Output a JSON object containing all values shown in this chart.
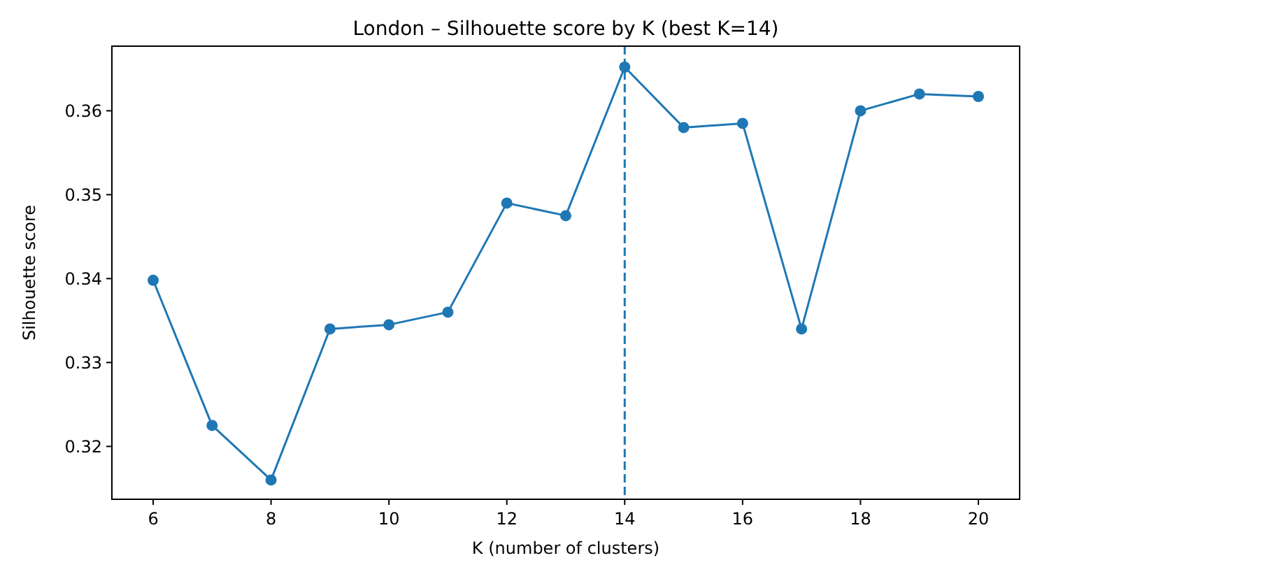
{
  "chart_data": {
    "type": "line",
    "title": "London – Silhouette score by K (best K=14)",
    "xlabel": "K (number of clusters)",
    "ylabel": "Silhouette score",
    "x": [
      6,
      7,
      8,
      9,
      10,
      11,
      12,
      13,
      14,
      15,
      16,
      17,
      18,
      19,
      20
    ],
    "series": [
      {
        "color": "#1f77b4",
        "values": [
          0.3398,
          0.3225,
          0.316,
          0.334,
          0.3345,
          0.336,
          0.349,
          0.3475,
          0.3652,
          0.358,
          0.3585,
          0.334,
          0.36,
          0.362,
          0.3617
        ]
      }
    ],
    "xlim": [
      5.3,
      20.7
    ],
    "xticks": [
      6,
      8,
      10,
      12,
      14,
      16,
      18,
      20
    ],
    "ylim": [
      0.3137,
      0.3677
    ],
    "yticks": [
      0.32,
      0.33,
      0.34,
      0.35,
      0.36
    ],
    "ref_lines": [
      {
        "axis": "x",
        "value": 14,
        "color": "#1f77b4",
        "line_style": "dashed"
      }
    ],
    "marker": "circle",
    "line_style": "solid",
    "grid": false
  }
}
